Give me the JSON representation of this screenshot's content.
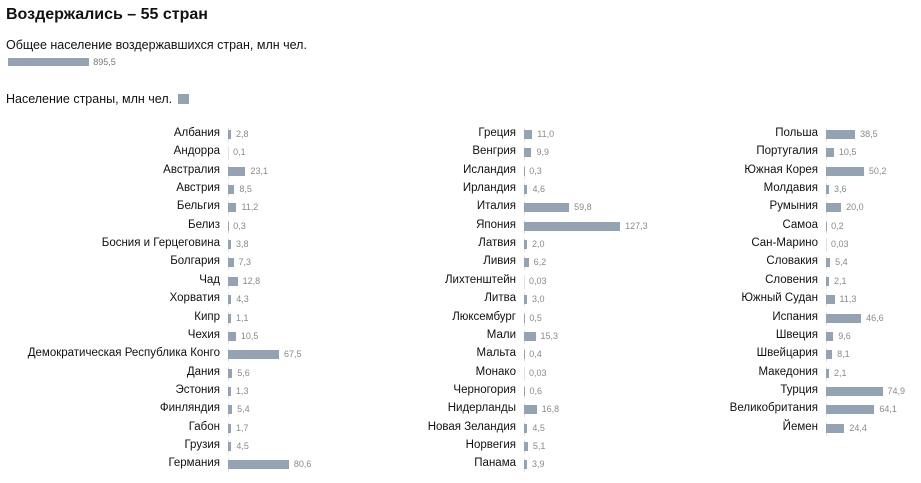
{
  "title": "Воздержались – 55 стран",
  "total": {
    "label": "Общее население воздержавшихся стран, млн чел.",
    "value": 895.5,
    "value_text": "895,5"
  },
  "legend_label": "Население страны, млн чел.",
  "colors": {
    "bar": "#93a3b3"
  },
  "chart_data": {
    "type": "bar",
    "orientation": "horizontal",
    "columns": [
      {
        "rows": [
          {
            "country": "Албания",
            "value": 2.8,
            "text": "2,8"
          },
          {
            "country": "Андорра",
            "value": 0.1,
            "text": "0,1"
          },
          {
            "country": "Австралия",
            "value": 23.1,
            "text": "23,1"
          },
          {
            "country": "Австрия",
            "value": 8.5,
            "text": "8,5"
          },
          {
            "country": "Бельгия",
            "value": 11.2,
            "text": "11,2"
          },
          {
            "country": "Белиз",
            "value": 0.3,
            "text": "0,3"
          },
          {
            "country": "Босния и Герцеговина",
            "value": 3.8,
            "text": "3,8"
          },
          {
            "country": "Болгария",
            "value": 7.3,
            "text": "7,3"
          },
          {
            "country": "Чад",
            "value": 12.8,
            "text": "12,8"
          },
          {
            "country": "Хорватия",
            "value": 4.3,
            "text": "4,3"
          },
          {
            "country": "Кипр",
            "value": 1.1,
            "text": "1,1"
          },
          {
            "country": "Чехия",
            "value": 10.5,
            "text": "10,5"
          },
          {
            "country": "Демократическая Республика Конго",
            "value": 67.5,
            "text": "67,5"
          },
          {
            "country": "Дания",
            "value": 5.6,
            "text": "5,6"
          },
          {
            "country": "Эстония",
            "value": 1.3,
            "text": "1,3"
          },
          {
            "country": "Финляндия",
            "value": 5.4,
            "text": "5,4"
          },
          {
            "country": "Габон",
            "value": 1.7,
            "text": "1,7"
          },
          {
            "country": "Грузия",
            "value": 4.5,
            "text": "4,5"
          },
          {
            "country": "Германия",
            "value": 80.6,
            "text": "80,6"
          }
        ]
      },
      {
        "rows": [
          {
            "country": "Греция",
            "value": 11.0,
            "text": "11,0"
          },
          {
            "country": "Венгрия",
            "value": 9.9,
            "text": "9,9"
          },
          {
            "country": "Исландия",
            "value": 0.3,
            "text": "0,3"
          },
          {
            "country": "Ирландия",
            "value": 4.6,
            "text": "4,6"
          },
          {
            "country": "Италия",
            "value": 59.8,
            "text": "59,8"
          },
          {
            "country": "Япония",
            "value": 127.3,
            "text": "127,3"
          },
          {
            "country": "Латвия",
            "value": 2.0,
            "text": "2,0"
          },
          {
            "country": "Ливия",
            "value": 6.2,
            "text": "6,2"
          },
          {
            "country": "Лихтенштейн",
            "value": 0.03,
            "text": "0,03"
          },
          {
            "country": "Литва",
            "value": 3.0,
            "text": "3,0"
          },
          {
            "country": "Люксембург",
            "value": 0.5,
            "text": "0,5"
          },
          {
            "country": "Мали",
            "value": 15.3,
            "text": "15,3"
          },
          {
            "country": "Мальта",
            "value": 0.4,
            "text": "0,4"
          },
          {
            "country": "Монако",
            "value": 0.03,
            "text": "0,03"
          },
          {
            "country": "Черногория",
            "value": 0.6,
            "text": "0,6"
          },
          {
            "country": "Нидерланды",
            "value": 16.8,
            "text": "16,8"
          },
          {
            "country": "Новая Зеландия",
            "value": 4.5,
            "text": "4,5"
          },
          {
            "country": "Норвегия",
            "value": 5.1,
            "text": "5,1"
          },
          {
            "country": "Панама",
            "value": 3.9,
            "text": "3,9"
          }
        ]
      },
      {
        "rows": [
          {
            "country": "Польша",
            "value": 38.5,
            "text": "38,5"
          },
          {
            "country": "Португалия",
            "value": 10.5,
            "text": "10,5"
          },
          {
            "country": "Южная Корея",
            "value": 50.2,
            "text": "50,2"
          },
          {
            "country": "Молдавия",
            "value": 3.6,
            "text": "3,6"
          },
          {
            "country": "Румыния",
            "value": 20.0,
            "text": "20,0"
          },
          {
            "country": "Самоа",
            "value": 0.2,
            "text": "0,2"
          },
          {
            "country": "Сан-Марино",
            "value": 0.03,
            "text": "0,03"
          },
          {
            "country": "Словакия",
            "value": 5.4,
            "text": "5,4"
          },
          {
            "country": "Словения",
            "value": 2.1,
            "text": "2,1"
          },
          {
            "country": "Южный Судан",
            "value": 11.3,
            "text": "11,3"
          },
          {
            "country": "Испания",
            "value": 46.6,
            "text": "46,6"
          },
          {
            "country": "Швеция",
            "value": 9.6,
            "text": "9,6"
          },
          {
            "country": "Швейцария",
            "value": 8.1,
            "text": "8,1"
          },
          {
            "country": "Македония",
            "value": 2.1,
            "text": "2,1"
          },
          {
            "country": "Турция",
            "value": 74.9,
            "text": "74,9"
          },
          {
            "country": "Великобритания",
            "value": 64.1,
            "text": "64,1"
          },
          {
            "country": "Йемен",
            "value": 24.4,
            "text": "24,4"
          }
        ]
      }
    ]
  }
}
